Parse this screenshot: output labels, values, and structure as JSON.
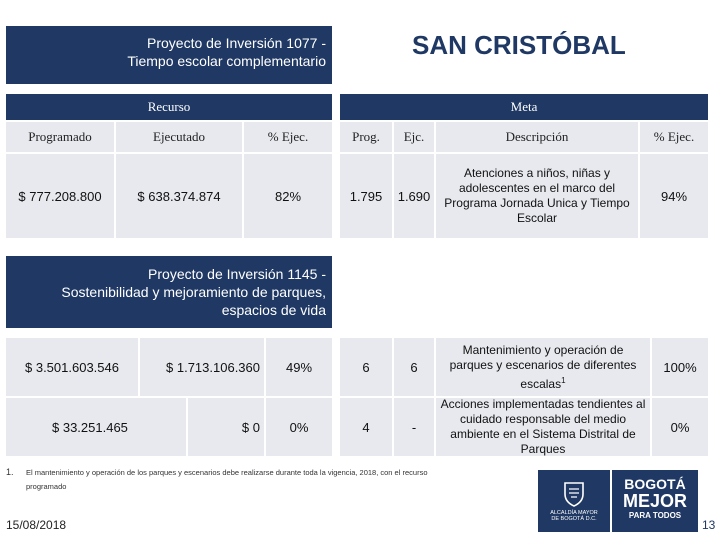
{
  "project1": {
    "title_line1": "Proyecto de Inversión 1077 -",
    "title_line2": "Tiempo escolar complementario"
  },
  "location": "SAN CRISTÓBAL",
  "headers": {
    "recurso": "Recurso",
    "meta": "Meta",
    "programado": "Programado",
    "ejecutado": "Ejecutado",
    "pct_ejec": "% Ejec.",
    "prog": "Prog.",
    "ejc": "Ejc.",
    "descripcion": "Descripción",
    "meta_pct_ejec": "% Ejec."
  },
  "row1": {
    "programado": "$ 777.208.800",
    "ejecutado": "$ 638.374.874",
    "pct": "82%",
    "prog": "1.795",
    "ejc": "1.690",
    "descripcion": "Atenciones a niños, niñas y adolescentes en el marco del Programa Jornada Unica y Tiempo Escolar",
    "meta_pct": "94%"
  },
  "project2": {
    "title_line1": "Proyecto de Inversión 1145 -",
    "title_line2": "Sostenibilidad y mejoramiento de parques,",
    "title_line3": "espacios de vida"
  },
  "row2": {
    "programado": "$ 3.501.603.546",
    "ejecutado": "$ 1.713.106.360",
    "pct": "49%",
    "prog": "6",
    "ejc": "6",
    "descripcion": "Mantenimiento y operación de parques y escenarios de diferentes escalas",
    "descripcion_sup": "1",
    "meta_pct": "100%"
  },
  "row3": {
    "programado": "$ 33.251.465",
    "ejecutado": "$ 0",
    "pct": "0%",
    "prog": "4",
    "ejc": "-",
    "descripcion": "Acciones implementadas tendientes al cuidado responsable del medio ambiente en el Sistema Distrital de Parques",
    "meta_pct": "0%"
  },
  "footnote": {
    "number": "1.",
    "text_line1": "El mantenimiento y operación de los parques y escenarios  debe realizarse durante toda la vigencia, 2018, con el recurso",
    "text_line2": "programado"
  },
  "footer": {
    "date": "15/08/2018",
    "page": "13",
    "logo_text_line1": "ALCALDÍA MAYOR",
    "logo_text_line2": "DE BOGOTÁ D.C.",
    "brand_line1": "BOGOTÁ",
    "brand_line2": "MEJOR",
    "brand_line3": "PARA TODOS"
  },
  "colors": {
    "navy": "#1f3864",
    "cell_bg": "#e7e9ee"
  }
}
